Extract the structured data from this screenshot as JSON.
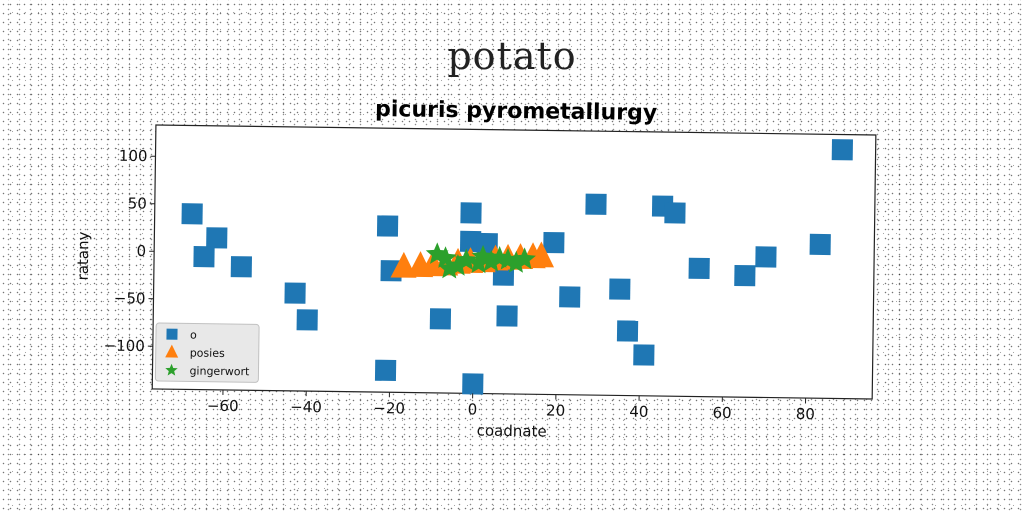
{
  "page_title": "potato",
  "chart_data": {
    "type": "scatter",
    "title": "picuris pyrometallurgy",
    "xlabel": "coadnate",
    "ylabel": "ratany",
    "xlim": [
      -77,
      96
    ],
    "ylim": [
      -145,
      133
    ],
    "xticks": [
      -60,
      -40,
      -20,
      0,
      20,
      40,
      60,
      80
    ],
    "yticks": [
      -100,
      -50,
      0,
      50,
      100
    ],
    "grid": false,
    "legend_position": "lower-left",
    "series": [
      {
        "name": "o",
        "marker": "square",
        "color": "#1f77b4",
        "points": [
          [
            -68,
            40
          ],
          [
            -62,
            15
          ],
          [
            -65,
            -5
          ],
          [
            -56,
            -15
          ],
          [
            -43,
            -42
          ],
          [
            -40,
            -70
          ],
          [
            -21,
            30
          ],
          [
            -20,
            -17
          ],
          [
            -21,
            -122
          ],
          [
            -8,
            -67
          ],
          [
            -1,
            45
          ],
          [
            -1,
            15
          ],
          [
            3,
            13
          ],
          [
            7,
            -20
          ],
          [
            8,
            -63
          ],
          [
            19,
            15
          ],
          [
            23,
            -42
          ],
          [
            29,
            56
          ],
          [
            35,
            -33
          ],
          [
            37,
            -77
          ],
          [
            41,
            -102
          ],
          [
            45,
            55
          ],
          [
            48,
            48
          ],
          [
            54,
            -10
          ],
          [
            65,
            -17
          ],
          [
            70,
            3
          ],
          [
            83,
            17
          ],
          [
            88,
            117
          ],
          [
            0,
            -135
          ]
        ]
      },
      {
        "name": "posies",
        "marker": "triangle",
        "color": "#ff7f0e",
        "points": [
          [
            -17,
            -13
          ],
          [
            -13,
            -12
          ],
          [
            -10,
            -11
          ],
          [
            -7,
            -10
          ],
          [
            -4,
            -8
          ],
          [
            -1,
            -7
          ],
          [
            2,
            -6
          ],
          [
            5,
            -4
          ],
          [
            8,
            -3
          ],
          [
            11,
            -2
          ],
          [
            14,
            -1
          ],
          [
            16,
            0
          ]
        ]
      },
      {
        "name": "gingerwort",
        "marker": "star",
        "color": "#2ca02c",
        "points": [
          [
            -9,
            1
          ],
          [
            -7,
            -3
          ],
          [
            -6,
            -14
          ],
          [
            -2,
            -5
          ],
          [
            1,
            -8
          ],
          [
            4,
            -6
          ],
          [
            6,
            -2
          ],
          [
            8,
            -4
          ],
          [
            10,
            -7
          ],
          [
            12,
            -3
          ],
          [
            -4,
            -11
          ],
          [
            2,
            -1
          ]
        ]
      }
    ]
  }
}
